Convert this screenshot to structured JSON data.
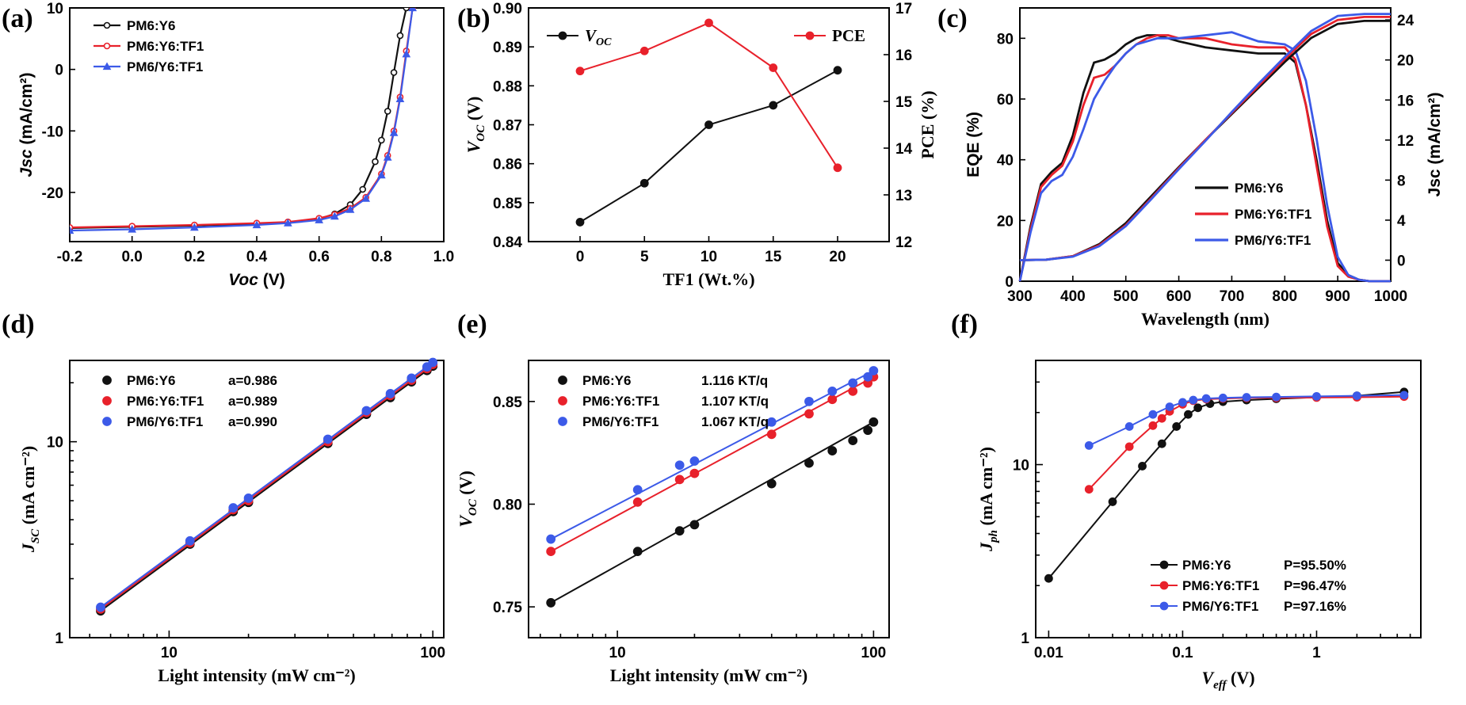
{
  "colors": {
    "black": "#111111",
    "red": "#e8212b",
    "blue": "#3c5ae8"
  },
  "panels": {
    "a": {
      "letter": "(a)"
    },
    "b": {
      "letter": "(b)"
    },
    "c": {
      "letter": "(c)"
    },
    "d": {
      "letter": "(d)"
    },
    "e": {
      "letter": "(e)"
    },
    "f": {
      "letter": "(f)"
    }
  },
  "chart_data": [
    {
      "id": "a",
      "type": "line",
      "xlabel": "Voc (V)",
      "ylabel": "Jsc (mA/cm²)",
      "xlim": [
        -0.2,
        1.0
      ],
      "ylim": [
        -28,
        10
      ],
      "xticks": [
        "-0.2",
        "0.0",
        "0.2",
        "0.4",
        "0.6",
        "0.8",
        "1.0"
      ],
      "yticks": [
        "10",
        "0",
        "-10",
        "-20"
      ],
      "legend_position": "top-left",
      "series": [
        {
          "name": "PM6:Y6",
          "color": "#111111",
          "marker": "circle-open",
          "x": [
            -0.2,
            0.0,
            0.2,
            0.4,
            0.5,
            0.6,
            0.65,
            0.7,
            0.74,
            0.78,
            0.8,
            0.82,
            0.84,
            0.86,
            0.88
          ],
          "y": [
            -25.8,
            -25.6,
            -25.4,
            -25.1,
            -24.9,
            -24.3,
            -23.5,
            -22.0,
            -19.5,
            -15.0,
            -11.5,
            -6.8,
            -0.5,
            5.5,
            10.0
          ]
        },
        {
          "name": "PM6:Y6:TF1",
          "color": "#e8212b",
          "marker": "circle-open",
          "x": [
            -0.2,
            0.0,
            0.2,
            0.4,
            0.5,
            0.6,
            0.65,
            0.7,
            0.75,
            0.8,
            0.82,
            0.84,
            0.86,
            0.88,
            0.9
          ],
          "y": [
            -25.7,
            -25.5,
            -25.3,
            -25.0,
            -24.8,
            -24.2,
            -23.6,
            -22.6,
            -20.8,
            -17.0,
            -14.0,
            -10.0,
            -4.5,
            3.0,
            10.0
          ]
        },
        {
          "name": "PM6/Y6:TF1",
          "color": "#3c5ae8",
          "marker": "triangle",
          "x": [
            -0.2,
            0.0,
            0.2,
            0.4,
            0.5,
            0.6,
            0.65,
            0.7,
            0.75,
            0.8,
            0.82,
            0.84,
            0.86,
            0.88,
            0.9
          ],
          "y": [
            -26.2,
            -26.0,
            -25.7,
            -25.3,
            -25.0,
            -24.5,
            -23.9,
            -22.8,
            -21.0,
            -17.2,
            -14.3,
            -10.3,
            -4.8,
            2.5,
            10.0
          ]
        }
      ]
    },
    {
      "id": "b",
      "type": "line",
      "xlabel": "TF1 (Wt.%)",
      "ylabel": "V_OC (V)",
      "y2label": "PCE (%)",
      "xlim": [
        -4,
        24
      ],
      "ylim": [
        0.84,
        0.9
      ],
      "y2lim": [
        12,
        17
      ],
      "xticks": [
        "0",
        "5",
        "10",
        "15",
        "20"
      ],
      "yticks": [
        "0.84",
        "0.85",
        "0.86",
        "0.87",
        "0.88",
        "0.89",
        "0.90"
      ],
      "y2ticks": [
        "12",
        "13",
        "14",
        "15",
        "16",
        "17"
      ],
      "legend": {
        "voc": "V",
        "voc_sub": "OC",
        "pce": "PCE"
      },
      "series": [
        {
          "name": "V_OC",
          "axis": "left",
          "color": "#111111",
          "x": [
            0,
            5,
            10,
            15,
            20
          ],
          "y": [
            0.845,
            0.855,
            0.87,
            0.875,
            0.884
          ]
        },
        {
          "name": "PCE",
          "axis": "right",
          "color": "#e8212b",
          "x": [
            0,
            5,
            10,
            15,
            20
          ],
          "y": [
            15.65,
            16.08,
            16.68,
            15.72,
            13.58
          ]
        }
      ]
    },
    {
      "id": "c",
      "type": "line",
      "xlabel": "Wavelength (nm)",
      "ylabel": "EQE (%)",
      "y2label": "Jsc (mA/cm²)",
      "xlim": [
        300,
        1000
      ],
      "ylim": [
        0,
        90
      ],
      "y2lim": [
        -2.1,
        25.2
      ],
      "xticks": [
        "300",
        "400",
        "500",
        "600",
        "700",
        "800",
        "900",
        "1000"
      ],
      "yticks": [
        "0",
        "20",
        "40",
        "60",
        "80"
      ],
      "y2ticks": [
        "0",
        "4",
        "8",
        "12",
        "16",
        "20",
        "24"
      ],
      "legend_position": "bottom-right",
      "series": [
        {
          "name": "PM6:Y6",
          "color": "#111111",
          "axis": "left",
          "x": [
            300,
            320,
            340,
            360,
            380,
            400,
            420,
            440,
            460,
            480,
            500,
            520,
            540,
            560,
            580,
            600,
            650,
            700,
            750,
            800,
            820,
            840,
            860,
            880,
            900,
            920,
            940,
            960,
            980,
            1000
          ],
          "y": [
            0,
            18,
            32,
            36,
            39,
            48,
            62,
            72,
            73,
            75,
            78,
            80,
            81,
            81,
            80,
            79,
            77,
            76,
            75,
            75,
            72,
            58,
            40,
            20,
            6,
            2,
            0.5,
            0,
            0,
            0
          ]
        },
        {
          "name": "PM6:Y6:TF1",
          "color": "#e8212b",
          "axis": "left",
          "x": [
            300,
            320,
            340,
            360,
            380,
            400,
            420,
            440,
            460,
            480,
            500,
            520,
            540,
            560,
            580,
            600,
            650,
            700,
            750,
            800,
            820,
            840,
            860,
            880,
            900,
            920,
            940,
            960,
            980,
            1000
          ],
          "y": [
            0,
            17,
            31,
            35,
            38,
            46,
            58,
            67,
            68,
            71,
            75,
            78,
            80,
            81,
            81,
            80,
            80,
            78,
            77,
            77,
            73,
            58,
            38,
            18,
            5,
            1.5,
            0.5,
            0,
            0,
            0
          ]
        },
        {
          "name": "PM6/Y6:TF1",
          "color": "#3c5ae8",
          "axis": "left",
          "x": [
            300,
            320,
            340,
            360,
            380,
            400,
            420,
            440,
            460,
            480,
            500,
            520,
            540,
            560,
            580,
            600,
            650,
            700,
            750,
            800,
            820,
            840,
            860,
            880,
            900,
            920,
            940,
            960,
            980,
            1000
          ],
          "y": [
            0,
            16,
            29,
            33,
            35,
            41,
            50,
            60,
            66,
            71,
            75,
            78,
            79,
            80,
            80,
            80,
            81,
            82,
            79,
            78,
            76,
            66,
            47,
            25,
            8,
            2,
            0.5,
            0,
            0,
            0
          ]
        },
        {
          "name": "PM6:Y6 Jsc",
          "color": "#111111",
          "axis": "right",
          "x": [
            300,
            350,
            400,
            450,
            500,
            550,
            600,
            650,
            700,
            750,
            800,
            850,
            900,
            950,
            1000
          ],
          "y": [
            0,
            0.05,
            0.4,
            1.6,
            3.7,
            6.5,
            9.3,
            12.0,
            14.6,
            17.2,
            19.8,
            22.2,
            23.6,
            23.9,
            23.9
          ]
        },
        {
          "name": "PM6:Y6:TF1 Jsc",
          "color": "#e8212b",
          "axis": "right",
          "x": [
            300,
            350,
            400,
            450,
            500,
            550,
            600,
            650,
            700,
            750,
            800,
            850,
            900,
            950,
            1000
          ],
          "y": [
            0,
            0.05,
            0.4,
            1.5,
            3.5,
            6.3,
            9.2,
            12.0,
            14.7,
            17.4,
            20.1,
            22.6,
            24.0,
            24.3,
            24.3
          ]
        },
        {
          "name": "PM6/Y6:TF1 Jsc",
          "color": "#3c5ae8",
          "axis": "right",
          "x": [
            300,
            350,
            400,
            450,
            500,
            550,
            600,
            650,
            700,
            750,
            800,
            850,
            900,
            950,
            1000
          ],
          "y": [
            0,
            0.05,
            0.35,
            1.4,
            3.4,
            6.2,
            9.1,
            11.9,
            14.8,
            17.6,
            20.3,
            22.9,
            24.4,
            24.6,
            24.6
          ]
        }
      ]
    },
    {
      "id": "d",
      "type": "scatter",
      "xlabel": "Light intensity (mW cm⁻²)",
      "ylabel": "J_SC (mA cm⁻²)",
      "xscale": "log",
      "yscale": "log",
      "xlim": [
        4.2,
        110
      ],
      "ylim": [
        1,
        26
      ],
      "xticks": [
        "10",
        "100"
      ],
      "yticks": [
        "1",
        "10"
      ],
      "legend_position": "top-left",
      "series": [
        {
          "name": "PM6:Y6",
          "fit": "a=0.986",
          "color": "#111111",
          "x": [
            5.5,
            12,
            17.5,
            20,
            40,
            56,
            69,
            83,
            95,
            100
          ],
          "y": [
            1.37,
            3.0,
            4.4,
            4.9,
            9.8,
            13.8,
            16.8,
            20.2,
            23.1,
            24.3
          ]
        },
        {
          "name": "PM6:Y6:TF1",
          "fit": "a=0.989",
          "color": "#e8212b",
          "x": [
            5.5,
            12,
            17.5,
            20,
            40,
            56,
            69,
            83,
            95,
            100
          ],
          "y": [
            1.4,
            3.05,
            4.5,
            5.0,
            10.0,
            14.1,
            17.2,
            20.6,
            23.6,
            24.8
          ]
        },
        {
          "name": "PM6/Y6:TF1",
          "fit": "a=0.990",
          "color": "#3c5ae8",
          "x": [
            5.5,
            12,
            17.5,
            20,
            40,
            56,
            69,
            83,
            95,
            100
          ],
          "y": [
            1.43,
            3.12,
            4.6,
            5.15,
            10.3,
            14.4,
            17.6,
            21.1,
            24.1,
            25.4
          ]
        }
      ]
    },
    {
      "id": "e",
      "type": "scatter",
      "xlabel": "Light intensity (mW cm⁻²)",
      "ylabel": "V_OC (V)",
      "xscale": "log",
      "yscale": "linear",
      "xlim": [
        4.5,
        115
      ],
      "ylim": [
        0.735,
        0.87
      ],
      "xticks": [
        "10",
        "100"
      ],
      "yticks": [
        "0.75",
        "0.80",
        "0.85"
      ],
      "legend_position": "top-left",
      "series": [
        {
          "name": "PM6:Y6",
          "fit": "1.116 KT/q",
          "color": "#111111",
          "x": [
            5.5,
            12,
            17.5,
            20,
            40,
            56,
            69,
            83,
            95,
            100
          ],
          "y": [
            0.752,
            0.777,
            0.787,
            0.79,
            0.81,
            0.82,
            0.826,
            0.831,
            0.836,
            0.84
          ]
        },
        {
          "name": "PM6:Y6:TF1",
          "fit": "1.107 KT/q",
          "color": "#e8212b",
          "x": [
            5.5,
            12,
            17.5,
            20,
            40,
            56,
            69,
            83,
            95,
            100
          ],
          "y": [
            0.777,
            0.801,
            0.812,
            0.815,
            0.834,
            0.844,
            0.851,
            0.855,
            0.859,
            0.862
          ]
        },
        {
          "name": "PM6/Y6:TF1",
          "fit": "1.067 KT/q",
          "color": "#3c5ae8",
          "x": [
            5.5,
            12,
            17.5,
            20,
            40,
            56,
            69,
            83,
            95,
            100
          ],
          "y": [
            0.783,
            0.807,
            0.819,
            0.821,
            0.84,
            0.85,
            0.855,
            0.859,
            0.862,
            0.865
          ]
        }
      ]
    },
    {
      "id": "f",
      "type": "line",
      "xlabel": "V_eff (V)",
      "ylabel": "J_ph (mA cm⁻²)",
      "xscale": "log",
      "yscale": "log",
      "xlim": [
        0.008,
        6
      ],
      "ylim": [
        1,
        40
      ],
      "xticks": [
        "0.01",
        "0.1",
        "1"
      ],
      "yticks": [
        "1",
        "10"
      ],
      "legend_position": "bottom-right",
      "series": [
        {
          "name": "PM6:Y6",
          "fit": "P=95.50%",
          "color": "#111111",
          "x": [
            0.01,
            0.03,
            0.05,
            0.07,
            0.09,
            0.11,
            0.13,
            0.16,
            0.2,
            0.3,
            0.5,
            1,
            2,
            4.5
          ],
          "y": [
            2.2,
            6.1,
            9.8,
            13.2,
            16.6,
            19.5,
            21.3,
            22.5,
            23.1,
            23.6,
            24.0,
            24.5,
            25.0,
            26.3
          ]
        },
        {
          "name": "PM6:Y6:TF1",
          "fit": "P=96.47%",
          "color": "#e8212b",
          "x": [
            0.02,
            0.04,
            0.06,
            0.07,
            0.08,
            0.1,
            0.12,
            0.15,
            0.2,
            0.3,
            0.5,
            1,
            2,
            4.5
          ],
          "y": [
            7.2,
            12.7,
            16.8,
            18.5,
            20.3,
            22.3,
            23.4,
            23.9,
            24.1,
            24.3,
            24.3,
            24.4,
            24.5,
            24.7
          ]
        },
        {
          "name": "PM6/Y6:TF1",
          "fit": "P=97.16%",
          "color": "#3c5ae8",
          "x": [
            0.02,
            0.04,
            0.06,
            0.08,
            0.1,
            0.12,
            0.15,
            0.2,
            0.3,
            0.5,
            1,
            2,
            4.5
          ],
          "y": [
            12.9,
            16.6,
            19.5,
            21.6,
            22.9,
            23.6,
            24.1,
            24.3,
            24.5,
            24.6,
            24.8,
            25.0,
            25.2
          ]
        }
      ]
    }
  ]
}
